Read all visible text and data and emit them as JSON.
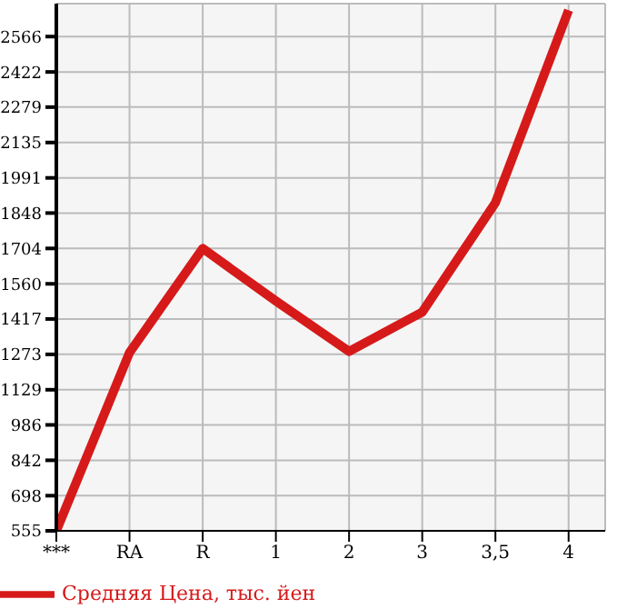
{
  "chart_data": {
    "type": "line",
    "categories": [
      "***",
      "RA",
      "R",
      "1",
      "2",
      "3",
      "3,5",
      "4"
    ],
    "series": [
      {
        "name": "Средняя Цена, тыс. йен",
        "color": "#d61a1a",
        "values": [
          555,
          1280,
          1704,
          1490,
          1285,
          1445,
          1890,
          2673
        ]
      }
    ],
    "ylim": [
      555,
      2700
    ],
    "yticks": [
      555,
      698,
      842,
      986,
      1129,
      1273,
      1417,
      1560,
      1704,
      1848,
      1991,
      2135,
      2279,
      2422,
      2566
    ],
    "grid": true,
    "legend": "bottom",
    "marker": "none",
    "line_style": "solid"
  }
}
